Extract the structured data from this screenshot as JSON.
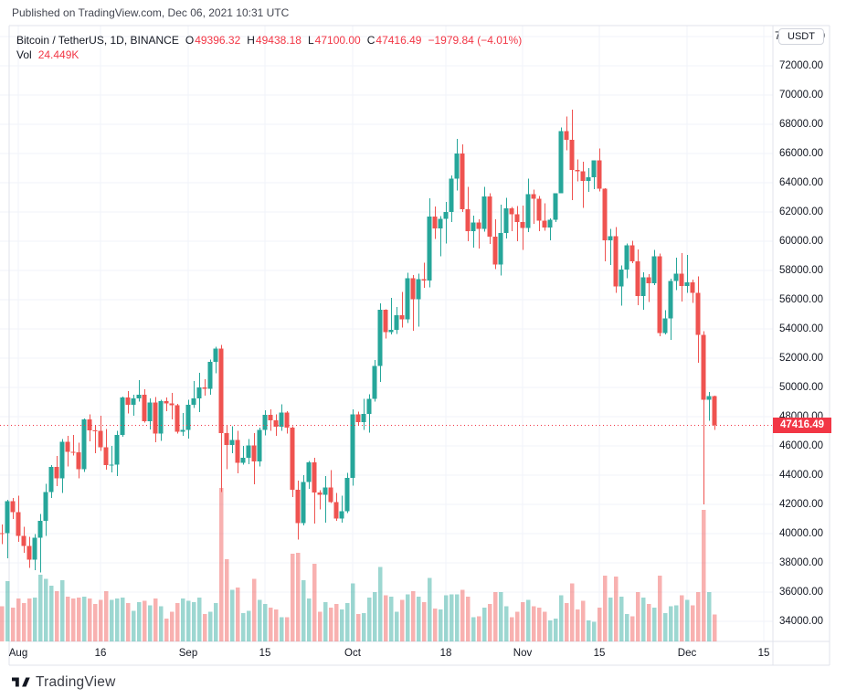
{
  "published_note": "Published on TradingView.com, Dec 06, 2021 10:31 UTC",
  "legend": {
    "symbol_line": "Bitcoin / TetherUS, 1D, BINANCE",
    "ohlc": {
      "o_label": "O",
      "o_value": "49396.32",
      "h_label": "H",
      "h_value": "49438.18",
      "l_label": "L",
      "l_value": "47100.00",
      "c_label": "C",
      "c_value": "47416.49"
    },
    "change": "−1979.84 (−4.01%)",
    "vol_label": "Vol",
    "vol_value": "24.449K"
  },
  "price_axis": {
    "currency_button": "USDT",
    "last_price_badge": "47416.49",
    "ticks": [
      74000,
      72000,
      70000,
      68000,
      66000,
      64000,
      62000,
      60000,
      58000,
      56000,
      54000,
      52000,
      50000,
      48000,
      46000,
      44000,
      42000,
      40000,
      38000,
      36000,
      34000
    ]
  },
  "time_axis": {
    "ticks": [
      {
        "label": "Aug",
        "day": 3
      },
      {
        "label": "16",
        "day": 18
      },
      {
        "label": "Sep",
        "day": 34
      },
      {
        "label": "15",
        "day": 48
      },
      {
        "label": "Oct",
        "day": 64
      },
      {
        "label": "18",
        "day": 81
      },
      {
        "label": "Nov",
        "day": 95
      },
      {
        "label": "15",
        "day": 109
      },
      {
        "label": "Dec",
        "day": 125
      },
      {
        "label": "15",
        "day": 139
      }
    ]
  },
  "footer": {
    "brand": "TradingView"
  },
  "colors": {
    "up": "#26a69a",
    "down": "#ef5350",
    "accent": "#f23645",
    "vol_up": "rgba(38,166,154,0.45)",
    "vol_down": "rgba(239,83,80,0.45)",
    "grid": "#f0f3fa",
    "frame": "#e0e3eb",
    "text": "#131722"
  },
  "chart_data": {
    "type": "candlestick+volume",
    "title": "Bitcoin / TetherUS, 1D, BINANCE",
    "interval": "1D",
    "year": 2021,
    "ylim": [
      32600,
      74750
    ],
    "last_price": 47416.49,
    "last_volume_k": 24.449,
    "legend_position": "top-left",
    "grid": true,
    "volume_unit": "K BTC (approx)",
    "columns": [
      "date",
      "open",
      "high",
      "low",
      "close",
      "volume_k"
    ],
    "candles": [
      [
        "07-29",
        40019,
        40640,
        39269,
        40016,
        32
      ],
      [
        "07-30",
        40016,
        42316,
        38313,
        42206,
        55
      ],
      [
        "07-31",
        42206,
        42448,
        41000,
        41461,
        31
      ],
      [
        "08-01",
        41461,
        42599,
        39422,
        39845,
        39
      ],
      [
        "08-02",
        39845,
        40480,
        38690,
        39147,
        35
      ],
      [
        "08-03",
        39147,
        39780,
        37642,
        38207,
        39
      ],
      [
        "08-04",
        38207,
        39969,
        37508,
        39723,
        40
      ],
      [
        "08-05",
        39723,
        41350,
        37332,
        40862,
        61
      ],
      [
        "08-06",
        40862,
        43392,
        39853,
        42836,
        57
      ],
      [
        "08-07",
        42836,
        44700,
        42446,
        44572,
        51
      ],
      [
        "08-08",
        44572,
        45310,
        43261,
        43792,
        46
      ],
      [
        "08-09",
        43792,
        46454,
        42779,
        46280,
        56
      ],
      [
        "08-10",
        46280,
        46700,
        44589,
        45593,
        41
      ],
      [
        "08-11",
        45593,
        46743,
        45341,
        45575,
        39
      ],
      [
        "08-12",
        45575,
        46218,
        43770,
        44417,
        40
      ],
      [
        "08-13",
        44417,
        47886,
        44217,
        47800,
        41
      ],
      [
        "08-14",
        47800,
        48144,
        46324,
        47068,
        39
      ],
      [
        "08-15",
        47068,
        47372,
        45500,
        47018,
        34
      ],
      [
        "08-16",
        47018,
        48053,
        45660,
        45901,
        38
      ],
      [
        "08-17",
        45901,
        47160,
        44376,
        44695,
        46
      ],
      [
        "08-18",
        44695,
        46000,
        44203,
        44705,
        38
      ],
      [
        "08-19",
        44705,
        47033,
        43927,
        46760,
        39
      ],
      [
        "08-20",
        46760,
        49382,
        46622,
        49322,
        40
      ],
      [
        "08-21",
        49322,
        49757,
        48222,
        48821,
        35
      ],
      [
        "08-22",
        48821,
        49500,
        48050,
        49239,
        28
      ],
      [
        "08-23",
        49239,
        50500,
        49029,
        49488,
        36
      ],
      [
        "08-24",
        49488,
        49860,
        47600,
        47674,
        37
      ],
      [
        "08-25",
        47674,
        49264,
        47126,
        48973,
        33
      ],
      [
        "08-26",
        48973,
        49352,
        46250,
        46843,
        39
      ],
      [
        "08-27",
        46843,
        49149,
        46348,
        49069,
        32
      ],
      [
        "08-28",
        49069,
        49299,
        48370,
        48895,
        21
      ],
      [
        "08-29",
        48895,
        49632,
        47800,
        48767,
        27
      ],
      [
        "08-30",
        48767,
        48888,
        46853,
        46982,
        35
      ],
      [
        "08-31",
        46982,
        48246,
        46700,
        47100,
        39
      ],
      [
        "09-01",
        47100,
        49156,
        46512,
        48810,
        37
      ],
      [
        "09-02",
        48810,
        50450,
        48600,
        49246,
        36
      ],
      [
        "09-03",
        49246,
        51000,
        48316,
        49999,
        40
      ],
      [
        "09-04",
        49999,
        50549,
        49450,
        49915,
        25
      ],
      [
        "09-05",
        49915,
        51900,
        49500,
        51756,
        27
      ],
      [
        "09-06",
        51756,
        52780,
        50969,
        52663,
        35
      ],
      [
        "09-07",
        52663,
        52920,
        42843,
        46863,
        140
      ],
      [
        "09-08",
        46863,
        47399,
        44412,
        46048,
        75
      ],
      [
        "09-09",
        46048,
        47340,
        45511,
        46395,
        47
      ],
      [
        "09-10",
        46395,
        47033,
        44132,
        44850,
        49
      ],
      [
        "09-11",
        44850,
        45987,
        44722,
        45173,
        26
      ],
      [
        "09-12",
        45173,
        46460,
        44742,
        46025,
        28
      ],
      [
        "09-13",
        46025,
        46880,
        43370,
        44940,
        57
      ],
      [
        "09-14",
        44940,
        47250,
        44594,
        47092,
        38
      ],
      [
        "09-15",
        47092,
        48450,
        46706,
        48130,
        34
      ],
      [
        "09-16",
        48130,
        48500,
        47021,
        47737,
        31
      ],
      [
        "09-17",
        47737,
        48150,
        46699,
        47299,
        29
      ],
      [
        "09-18",
        47299,
        48843,
        47035,
        48292,
        22
      ],
      [
        "09-19",
        48292,
        48372,
        46829,
        47243,
        22
      ],
      [
        "09-20",
        47243,
        47347,
        42500,
        43015,
        80
      ],
      [
        "09-21",
        43015,
        43639,
        39600,
        40734,
        81
      ],
      [
        "09-22",
        40734,
        43985,
        40565,
        43543,
        56
      ],
      [
        "09-23",
        43543,
        44978,
        43069,
        44865,
        39
      ],
      [
        "09-24",
        44865,
        45200,
        40675,
        42810,
        71
      ],
      [
        "09-25",
        42810,
        42966,
        41646,
        42670,
        27
      ],
      [
        "09-26",
        42670,
        43937,
        40750,
        43160,
        36
      ],
      [
        "09-27",
        43160,
        44350,
        42098,
        42147,
        31
      ],
      [
        "09-28",
        42147,
        42787,
        40888,
        41026,
        34
      ],
      [
        "09-29",
        41026,
        42590,
        40753,
        41522,
        29
      ],
      [
        "09-30",
        41522,
        44141,
        41410,
        43824,
        35
      ],
      [
        "10-01",
        43824,
        48495,
        43283,
        48141,
        53
      ],
      [
        "10-02",
        48141,
        48336,
        47430,
        47634,
        25
      ],
      [
        "10-03",
        47634,
        49228,
        47088,
        48200,
        26
      ],
      [
        "10-04",
        48200,
        49536,
        46891,
        49224,
        40
      ],
      [
        "10-05",
        49224,
        51886,
        49022,
        51471,
        45
      ],
      [
        "10-06",
        51471,
        55750,
        50382,
        55315,
        68
      ],
      [
        "10-07",
        55315,
        55336,
        53357,
        53785,
        42
      ],
      [
        "10-08",
        53785,
        56113,
        53634,
        53951,
        41
      ],
      [
        "10-09",
        53951,
        55489,
        53661,
        54949,
        27
      ],
      [
        "10-10",
        54949,
        56545,
        54080,
        54659,
        38
      ],
      [
        "10-11",
        54659,
        57839,
        54415,
        57471,
        43
      ],
      [
        "10-12",
        57471,
        57680,
        53879,
        56041,
        46
      ],
      [
        "10-13",
        56041,
        57777,
        54167,
        57401,
        41
      ],
      [
        "10-14",
        57401,
        58532,
        56817,
        57321,
        36
      ],
      [
        "10-15",
        57321,
        62933,
        56850,
        61672,
        58
      ],
      [
        "10-16",
        61672,
        62378,
        60166,
        60875,
        30
      ],
      [
        "10-17",
        60875,
        61718,
        58963,
        61528,
        29
      ],
      [
        "10-18",
        61528,
        62695,
        59844,
        62009,
        42
      ],
      [
        "10-19",
        62009,
        64486,
        61322,
        64280,
        43
      ],
      [
        "10-20",
        64280,
        67000,
        63481,
        65992,
        43
      ],
      [
        "10-21",
        65992,
        66639,
        62000,
        62193,
        47
      ],
      [
        "10-22",
        62193,
        63732,
        60000,
        60688,
        41
      ],
      [
        "10-23",
        60688,
        61747,
        59562,
        61286,
        22
      ],
      [
        "10-24",
        61286,
        61500,
        59510,
        60852,
        23
      ],
      [
        "10-25",
        60852,
        63729,
        60650,
        63078,
        31
      ],
      [
        "10-26",
        63078,
        63293,
        59817,
        60328,
        34
      ],
      [
        "10-27",
        60328,
        61496,
        58100,
        58413,
        45
      ],
      [
        "10-28",
        58413,
        62499,
        57653,
        60575,
        45
      ],
      [
        "10-29",
        60575,
        62980,
        60174,
        62253,
        32
      ],
      [
        "10-30",
        62253,
        62359,
        60673,
        61859,
        22
      ],
      [
        "10-31",
        61859,
        62405,
        60000,
        61299,
        27
      ],
      [
        "11-01",
        61299,
        62437,
        59405,
        60911,
        36
      ],
      [
        "11-02",
        60911,
        64270,
        60624,
        63219,
        38
      ],
      [
        "11-03",
        63219,
        63516,
        61184,
        62896,
        32
      ],
      [
        "11-04",
        62896,
        63086,
        60677,
        61395,
        31
      ],
      [
        "11-05",
        61395,
        62595,
        60721,
        60937,
        27
      ],
      [
        "11-06",
        60937,
        61560,
        60050,
        61470,
        19
      ],
      [
        "11-07",
        61470,
        63286,
        61322,
        63273,
        21
      ],
      [
        "11-08",
        63273,
        67789,
        63273,
        67525,
        42
      ],
      [
        "11-09",
        67525,
        68524,
        66222,
        66947,
        35
      ],
      [
        "11-10",
        66947,
        69000,
        62822,
        64882,
        53
      ],
      [
        "11-11",
        64882,
        65600,
        64100,
        64774,
        29
      ],
      [
        "11-12",
        64774,
        65450,
        62278,
        64122,
        37
      ],
      [
        "11-13",
        64122,
        64995,
        63360,
        64380,
        19
      ],
      [
        "11-14",
        64380,
        65525,
        63576,
        65519,
        18
      ],
      [
        "11-15",
        65519,
        66339,
        63407,
        63606,
        31
      ],
      [
        "11-16",
        63606,
        63617,
        58638,
        60058,
        60
      ],
      [
        "11-17",
        60058,
        60840,
        58373,
        60344,
        40
      ],
      [
        "11-18",
        60344,
        60976,
        56474,
        56891,
        59
      ],
      [
        "11-19",
        56891,
        58351,
        55600,
        58052,
        41
      ],
      [
        "11-20",
        58052,
        59859,
        57469,
        59707,
        25
      ],
      [
        "11-21",
        59707,
        60029,
        58486,
        58622,
        23
      ],
      [
        "11-22",
        58622,
        59444,
        55610,
        56247,
        45
      ],
      [
        "11-23",
        56247,
        57875,
        55317,
        57541,
        40
      ],
      [
        "11-24",
        57541,
        57735,
        55837,
        57138,
        34
      ],
      [
        "11-25",
        57138,
        59398,
        57000,
        58960,
        31
      ],
      [
        "11-26",
        58960,
        59150,
        53500,
        53726,
        60
      ],
      [
        "11-27",
        53726,
        55280,
        53610,
        54721,
        26
      ],
      [
        "11-28",
        54721,
        57445,
        53256,
        57274,
        32
      ],
      [
        "11-29",
        57274,
        58865,
        56666,
        57776,
        33
      ],
      [
        "11-30",
        57776,
        59176,
        55875,
        56950,
        42
      ],
      [
        "12-01",
        56950,
        59053,
        56458,
        57184,
        38
      ],
      [
        "12-02",
        57184,
        57375,
        55777,
        56480,
        33
      ],
      [
        "12-03",
        56480,
        57600,
        51680,
        53601,
        45
      ],
      [
        "12-04",
        53601,
        53859,
        42000,
        49152,
        120
      ],
      [
        "12-05",
        49152,
        49699,
        47727,
        49396,
        45
      ],
      [
        "12-06",
        49396.32,
        49438.18,
        47100.0,
        47416.49,
        24.449
      ]
    ]
  }
}
